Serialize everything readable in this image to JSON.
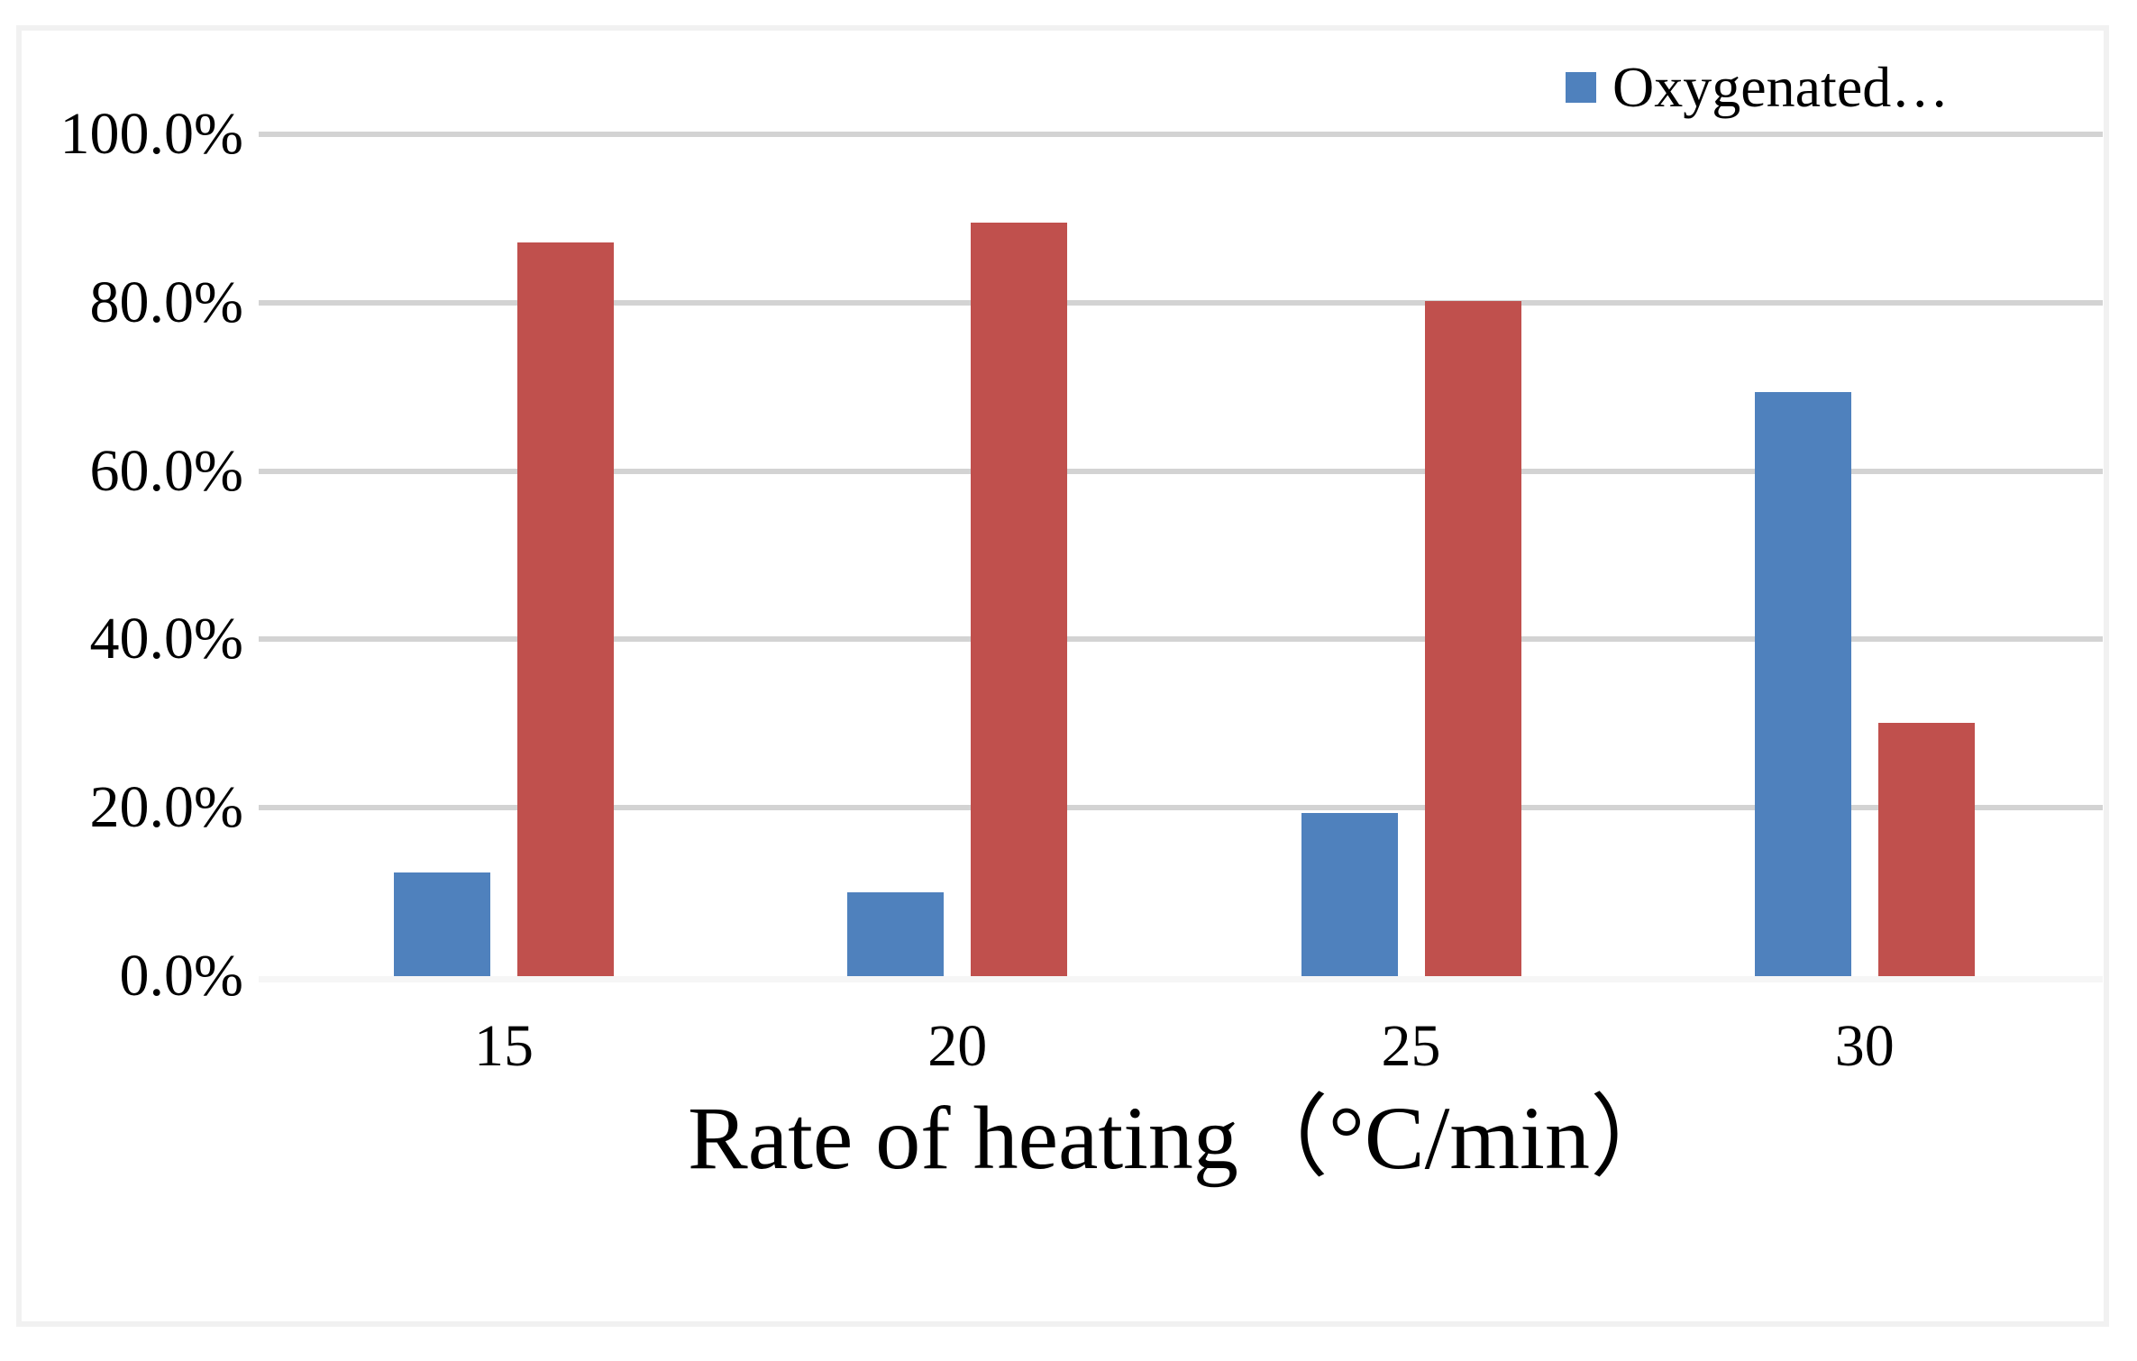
{
  "chart_data": {
    "type": "bar",
    "title": "",
    "xlabel": "Rate of heating（°C/min）",
    "ylabel": "",
    "categories": [
      "15",
      "20",
      "25",
      "30"
    ],
    "series": [
      {
        "name": "Oxygenated…",
        "color": "#4f81bd",
        "values": [
          12.3,
          10.0,
          19.4,
          69.4
        ]
      },
      {
        "name": "",
        "color": "#c0504d",
        "values": [
          87.2,
          89.5,
          80.2,
          30.1
        ]
      }
    ],
    "ylim": [
      0,
      100
    ],
    "y_tick_values": [
      0,
      20,
      40,
      60,
      80,
      100
    ],
    "y_tick_labels": [
      "0.0%",
      "20.0%",
      "40.0%",
      "60.0%",
      "80.0%",
      "100.0%"
    ],
    "grid": "horizontal",
    "legend_position": "top-right",
    "colors": {
      "gridline": "#d3d3d3",
      "axis_line": "#f6f6f6",
      "frame_border": "#f1f1f1",
      "text": "#000000"
    }
  }
}
